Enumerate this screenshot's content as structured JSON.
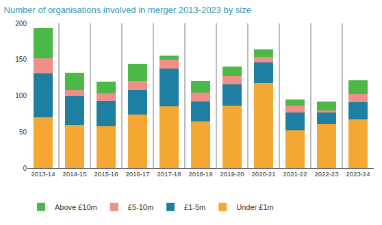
{
  "chart_data": {
    "type": "bar",
    "title": "Number of organisations involved in merger 2013-2023 by size",
    "stacked": true,
    "grid": false,
    "legend": "bottom",
    "categories": [
      "2013-14",
      "2014-15",
      "2015-16",
      "2016-17",
      "2017-18",
      "2018-19",
      "2019-20",
      "2020-21",
      "2021-22",
      "2022-23",
      "2023-24"
    ],
    "series": [
      {
        "name": "Under £1m",
        "color": "#F5A733",
        "values": [
          70,
          60,
          58,
          74,
          85,
          64,
          86,
          118,
          52,
          61,
          67
        ]
      },
      {
        "name": "£1-5m",
        "color": "#1E7FA3",
        "values": [
          61,
          40,
          35,
          34,
          52,
          28,
          30,
          28,
          25,
          16,
          24
        ]
      },
      {
        "name": "£5-10m",
        "color": "#F08F8A",
        "values": [
          21,
          8,
          10,
          12,
          13,
          12,
          11,
          8,
          9,
          3,
          11
        ]
      },
      {
        "name": "Above £10m",
        "color": "#4CB848",
        "values": [
          41,
          24,
          16,
          24,
          5,
          16,
          13,
          10,
          9,
          12,
          19
        ]
      }
    ],
    "ylim": [
      0,
      200
    ],
    "yticks": [
      0,
      50,
      100,
      150,
      200
    ]
  }
}
